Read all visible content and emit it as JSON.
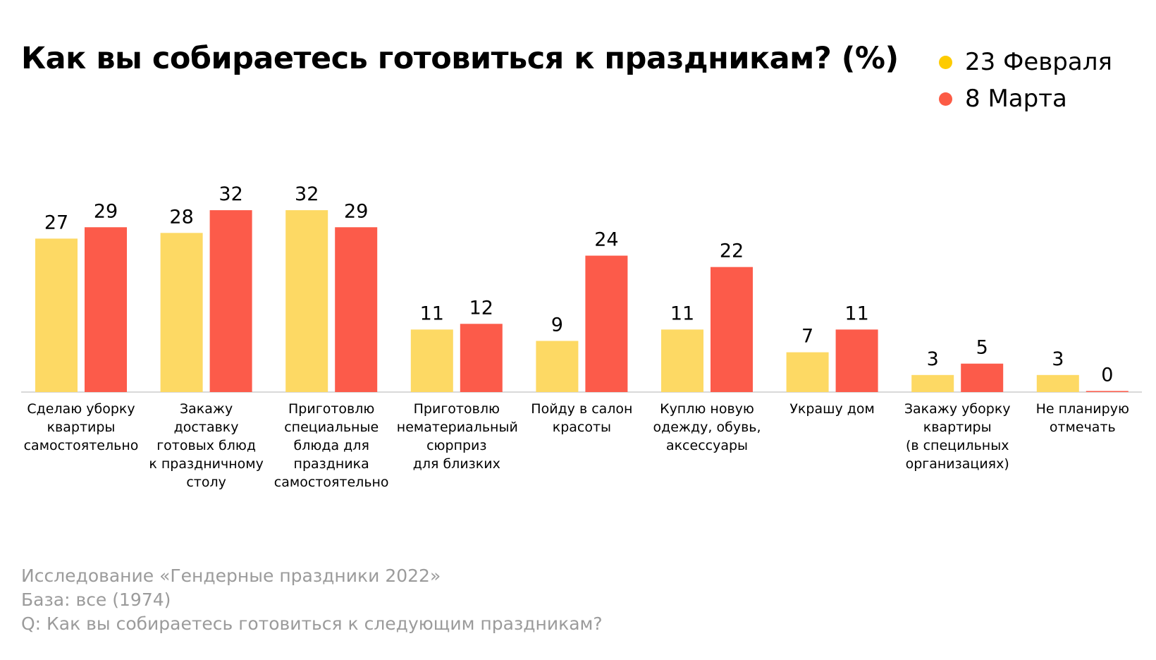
{
  "title": "Как вы собираетесь готовиться к праздникам? (%)",
  "legend": [
    {
      "label": "23 Февраля",
      "color": "#fdcb00"
    },
    {
      "label": "8 Марта",
      "color": "#fc5b45"
    }
  ],
  "chart_data": {
    "type": "bar",
    "title": "Как вы собираетесь готовиться к праздникам? (%)",
    "categories": [
      "Сделаю уборку\nквартиры\nсамостоятельно",
      "Закажу доставку\nготовых блюд\nк праздничному\nстолу",
      "Приготовлю\nспециальные\nблюда для\nпраздника\nсамостоятельно",
      "Приготовлю\nнематериальный\nсюрприз\nдля близких",
      "Пойду в салон\nкрасоты",
      "Куплю новую\nодежду, обувь,\nаксессуары",
      "Украшу дом",
      "Закажу уборку\nквартиры\n(в специльных\nорганизациях)",
      "Не планирую\nотмечать"
    ],
    "series": [
      {
        "name": "23 Февраля",
        "color": "#fdd964",
        "values": [
          27,
          28,
          32,
          11,
          9,
          11,
          7,
          3,
          3
        ]
      },
      {
        "name": "8 Марта",
        "color": "#fc5b4a",
        "values": [
          29,
          32,
          29,
          12,
          24,
          22,
          11,
          5,
          0
        ]
      }
    ],
    "xlabel": "",
    "ylabel": "",
    "ylim": [
      0,
      32
    ],
    "grid": false,
    "legend_position": "top-right"
  },
  "notes": [
    "Исследование «Гендерные праздники 2022»",
    "База: все (1974)",
    "Q: Как вы собираетесь готовиться к следующим праздникам?"
  ]
}
